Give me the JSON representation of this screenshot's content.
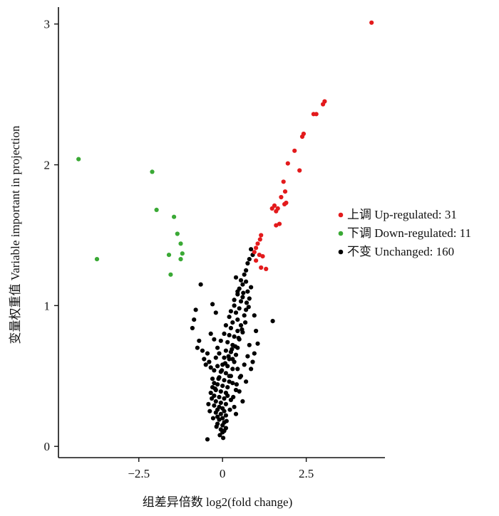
{
  "chart_data": {
    "type": "scatter",
    "title": "",
    "xlabel": "组差异倍数 log2(fold change)",
    "ylabel": "变量权重值 Variable important in projection",
    "xlim": [
      -4.9,
      4.85
    ],
    "ylim": [
      -0.08,
      3.12
    ],
    "x_ticks": [
      -2.5,
      0,
      2.5
    ],
    "x_tick_labels": [
      "−2.5",
      "0",
      "2.5"
    ],
    "y_ticks": [
      0,
      1,
      2,
      3
    ],
    "y_tick_labels": [
      "0",
      "1",
      "2",
      "3"
    ],
    "grid": false,
    "legend_position": "right",
    "series": [
      {
        "name": "上调 Up-regulated: 31",
        "color": "#e31a1c",
        "points": [
          [
            4.45,
            3.01
          ],
          [
            3.05,
            2.45
          ],
          [
            3.0,
            2.43
          ],
          [
            2.8,
            2.36
          ],
          [
            2.72,
            2.36
          ],
          [
            2.42,
            2.22
          ],
          [
            2.38,
            2.2
          ],
          [
            2.15,
            2.1
          ],
          [
            2.3,
            1.96
          ],
          [
            1.95,
            2.01
          ],
          [
            1.82,
            1.88
          ],
          [
            1.87,
            1.81
          ],
          [
            1.75,
            1.77
          ],
          [
            1.85,
            1.72
          ],
          [
            1.9,
            1.73
          ],
          [
            1.55,
            1.71
          ],
          [
            1.65,
            1.69
          ],
          [
            1.6,
            1.67
          ],
          [
            1.48,
            1.69
          ],
          [
            1.7,
            1.58
          ],
          [
            1.6,
            1.57
          ],
          [
            1.15,
            1.5
          ],
          [
            1.12,
            1.47
          ],
          [
            1.05,
            1.44
          ],
          [
            1.0,
            1.41
          ],
          [
            0.95,
            1.38
          ],
          [
            1.2,
            1.35
          ],
          [
            1.1,
            1.36
          ],
          [
            1.0,
            1.32
          ],
          [
            1.15,
            1.27
          ],
          [
            1.3,
            1.26
          ]
        ]
      },
      {
        "name": "下调 Down-regulated: 11",
        "color": "#3aa935",
        "points": [
          [
            -4.3,
            2.04
          ],
          [
            -2.1,
            1.95
          ],
          [
            -1.97,
            1.68
          ],
          [
            -1.45,
            1.63
          ],
          [
            -1.35,
            1.51
          ],
          [
            -1.25,
            1.44
          ],
          [
            -1.2,
            1.37
          ],
          [
            -1.6,
            1.36
          ],
          [
            -1.25,
            1.33
          ],
          [
            -3.75,
            1.33
          ],
          [
            -1.55,
            1.22
          ]
        ]
      },
      {
        "name": "不变 Unchanged: 160",
        "color": "#000000",
        "points": [
          [
            0.85,
            1.4
          ],
          [
            0.9,
            1.36
          ],
          [
            0.8,
            1.33
          ],
          [
            0.75,
            1.3
          ],
          [
            0.7,
            1.25
          ],
          [
            0.65,
            1.22
          ],
          [
            0.4,
            1.2
          ],
          [
            0.7,
            1.17
          ],
          [
            0.6,
            1.15
          ],
          [
            0.5,
            1.12
          ],
          [
            0.85,
            1.13
          ],
          [
            0.75,
            1.1
          ],
          [
            0.45,
            1.08
          ],
          [
            0.6,
            1.06
          ],
          [
            0.8,
            1.05
          ],
          [
            0.55,
            1.03
          ],
          [
            0.35,
            1.0
          ],
          [
            0.5,
            0.98
          ],
          [
            0.7,
            0.97
          ],
          [
            0.4,
            0.95
          ],
          [
            0.65,
            0.93
          ],
          [
            0.45,
            0.9
          ],
          [
            0.3,
            0.88
          ],
          [
            0.55,
            0.86
          ],
          [
            0.25,
            0.84
          ],
          [
            0.45,
            0.82
          ],
          [
            0.6,
            0.81
          ],
          [
            0.2,
            0.79
          ],
          [
            0.35,
            0.78
          ],
          [
            0.5,
            0.76
          ],
          [
            0.15,
            0.74
          ],
          [
            0.3,
            0.72
          ],
          [
            0.45,
            0.7
          ],
          [
            0.1,
            0.68
          ],
          [
            0.25,
            0.67
          ],
          [
            0.4,
            0.65
          ],
          [
            0.05,
            0.63
          ],
          [
            0.2,
            0.62
          ],
          [
            0.35,
            0.6
          ],
          [
            0.0,
            0.58
          ],
          [
            0.15,
            0.57
          ],
          [
            0.3,
            0.55
          ],
          [
            -0.05,
            0.53
          ],
          [
            0.1,
            0.52
          ],
          [
            0.25,
            0.5
          ],
          [
            -0.1,
            0.49
          ],
          [
            0.05,
            0.47
          ],
          [
            0.2,
            0.46
          ],
          [
            -0.15,
            0.44
          ],
          [
            0.0,
            0.43
          ],
          [
            0.15,
            0.42
          ],
          [
            -0.2,
            0.4
          ],
          [
            -0.05,
            0.39
          ],
          [
            0.1,
            0.38
          ],
          [
            -0.25,
            0.36
          ],
          [
            -0.1,
            0.35
          ],
          [
            0.05,
            0.34
          ],
          [
            -0.2,
            0.32
          ],
          [
            -0.05,
            0.31
          ],
          [
            0.1,
            0.3
          ],
          [
            -0.25,
            0.29
          ],
          [
            -0.1,
            0.28
          ],
          [
            0.0,
            0.27
          ],
          [
            -0.15,
            0.26
          ],
          [
            0.05,
            0.25
          ],
          [
            -0.2,
            0.24
          ],
          [
            -0.05,
            0.23
          ],
          [
            0.1,
            0.22
          ],
          [
            -0.15,
            0.21
          ],
          [
            0.0,
            0.2
          ],
          [
            -0.1,
            0.19
          ],
          [
            0.05,
            0.17
          ],
          [
            -0.15,
            0.16
          ],
          [
            0.0,
            0.15
          ],
          [
            0.1,
            0.13
          ],
          [
            -0.05,
            0.12
          ],
          [
            0.05,
            0.11
          ],
          [
            0.0,
            0.1
          ],
          [
            -0.45,
            0.05
          ],
          [
            -0.2,
            0.63
          ],
          [
            -0.35,
            0.56
          ],
          [
            -0.3,
            0.48
          ],
          [
            -0.25,
            0.54
          ],
          [
            -0.4,
            0.6
          ],
          [
            -0.3,
            0.42
          ],
          [
            -0.15,
            0.57
          ],
          [
            -0.35,
            0.38
          ],
          [
            -0.25,
            0.45
          ],
          [
            0.2,
            0.5
          ],
          [
            0.3,
            0.45
          ],
          [
            0.25,
            0.33
          ],
          [
            0.35,
            0.28
          ],
          [
            0.4,
            0.4
          ],
          [
            0.15,
            0.36
          ],
          [
            0.3,
            0.62
          ],
          [
            0.45,
            0.55
          ],
          [
            0.55,
            0.5
          ],
          [
            0.5,
            0.39
          ],
          [
            0.4,
            0.23
          ],
          [
            0.6,
            0.32
          ],
          [
            0.7,
            0.46
          ],
          [
            0.65,
            0.58
          ],
          [
            0.75,
            0.64
          ],
          [
            0.8,
            0.72
          ],
          [
            0.9,
            0.6
          ],
          [
            0.85,
            0.55
          ],
          [
            0.95,
            0.66
          ],
          [
            1.0,
            0.82
          ],
          [
            1.05,
            0.73
          ],
          [
            0.95,
            0.93
          ],
          [
            1.5,
            0.89
          ],
          [
            -0.65,
            1.15
          ],
          [
            -0.8,
            0.97
          ],
          [
            -0.9,
            0.84
          ],
          [
            -0.85,
            0.9
          ],
          [
            -0.7,
            0.75
          ],
          [
            -0.6,
            0.68
          ],
          [
            -0.75,
            0.7
          ],
          [
            -0.55,
            0.62
          ],
          [
            -0.5,
            0.58
          ],
          [
            -0.45,
            0.66
          ],
          [
            -0.3,
            1.01
          ],
          [
            -0.2,
            0.95
          ],
          [
            -0.35,
            0.8
          ],
          [
            -0.25,
            0.76
          ],
          [
            -0.15,
            0.7
          ],
          [
            -0.1,
            0.66
          ],
          [
            -0.05,
            0.75
          ],
          [
            0.05,
            0.8
          ],
          [
            0.1,
            0.86
          ],
          [
            0.2,
            0.92
          ],
          [
            0.25,
            0.96
          ],
          [
            0.35,
            1.04
          ],
          [
            0.45,
            1.1
          ],
          [
            0.55,
            1.18
          ],
          [
            0.62,
            1.09
          ],
          [
            0.72,
            1.02
          ],
          [
            0.78,
            0.99
          ],
          [
            0.68,
            0.88
          ],
          [
            0.58,
            0.83
          ],
          [
            0.48,
            0.77
          ],
          [
            0.38,
            0.71
          ],
          [
            0.28,
            0.69
          ],
          [
            0.18,
            0.64
          ],
          [
            0.08,
            0.59
          ],
          [
            -0.02,
            0.54
          ],
          [
            -0.12,
            0.48
          ],
          [
            -0.22,
            0.41
          ],
          [
            -0.32,
            0.34
          ],
          [
            -0.42,
            0.3
          ],
          [
            -0.38,
            0.25
          ],
          [
            -0.28,
            0.2
          ],
          [
            -0.18,
            0.14
          ],
          [
            -0.08,
            0.08
          ],
          [
            0.02,
            0.06
          ],
          [
            0.12,
            0.18
          ],
          [
            0.22,
            0.26
          ],
          [
            0.32,
            0.35
          ],
          [
            0.42,
            0.44
          ],
          [
            0.52,
            0.49
          ]
        ]
      }
    ]
  }
}
